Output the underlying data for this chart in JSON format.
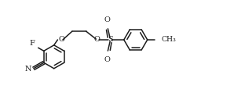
{
  "bg": "#ffffff",
  "lc": "#1c1c1c",
  "lw": 1.1,
  "fs": 7.0,
  "figsize": [
    2.98,
    1.32
  ],
  "dpi": 100,
  "R": 0.55,
  "xlim": [
    -0.5,
    9.5
  ],
  "ylim": [
    -1.0,
    3.8
  ]
}
